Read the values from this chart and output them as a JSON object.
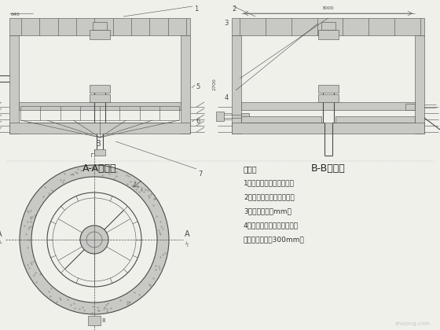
{
  "bg_color": "#f0f0eb",
  "line_color": "#4a4a4a",
  "wall_color": "#c8c8c4",
  "font_size_label": 8.5,
  "font_size_notes": 7.0,
  "notes_title": "说明：",
  "notes": [
    "1、所有穿墙管均设套管。",
    "2、弯管处均用法兰连接。",
    "3、标注单位为mm。",
    "4、构筑物墙体采用钢筋混凝",
    "土，墙体厚度为300mm。"
  ]
}
